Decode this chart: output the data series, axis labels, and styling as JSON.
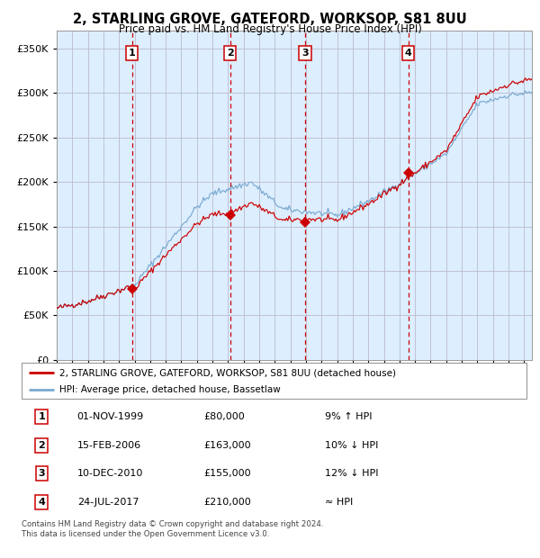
{
  "title": "2, STARLING GROVE, GATEFORD, WORKSOP, S81 8UU",
  "subtitle": "Price paid vs. HM Land Registry's House Price Index (HPI)",
  "legend_line1": "2, STARLING GROVE, GATEFORD, WORKSOP, S81 8UU (detached house)",
  "legend_line2": "HPI: Average price, detached house, Bassetlaw",
  "footer1": "Contains HM Land Registry data © Crown copyright and database right 2024.",
  "footer2": "This data is licensed under the Open Government Licence v3.0.",
  "sales": [
    {
      "num": 1,
      "date": "01-NOV-1999",
      "price": 80000,
      "relation": "9% ↑ HPI",
      "date_val": 1999.83
    },
    {
      "num": 2,
      "date": "15-FEB-2006",
      "price": 163000,
      "relation": "10% ↓ HPI",
      "date_val": 2006.12
    },
    {
      "num": 3,
      "date": "10-DEC-2010",
      "price": 155000,
      "relation": "12% ↓ HPI",
      "date_val": 2010.94
    },
    {
      "num": 4,
      "date": "24-JUL-2017",
      "price": 210000,
      "relation": "≈ HPI",
      "date_val": 2017.56
    }
  ],
  "xlim": [
    1995.0,
    2025.5
  ],
  "ylim": [
    0,
    370000
  ],
  "yticks": [
    0,
    50000,
    100000,
    150000,
    200000,
    250000,
    300000,
    350000
  ],
  "hpi_color": "#7aaad0",
  "price_color": "#cc0000",
  "sale_dot_color": "#cc0000",
  "dashed_color": "#cc0000",
  "background_color": "#ddeeff",
  "grid_color": "#bbbbcc",
  "box_color": "#cc0000"
}
